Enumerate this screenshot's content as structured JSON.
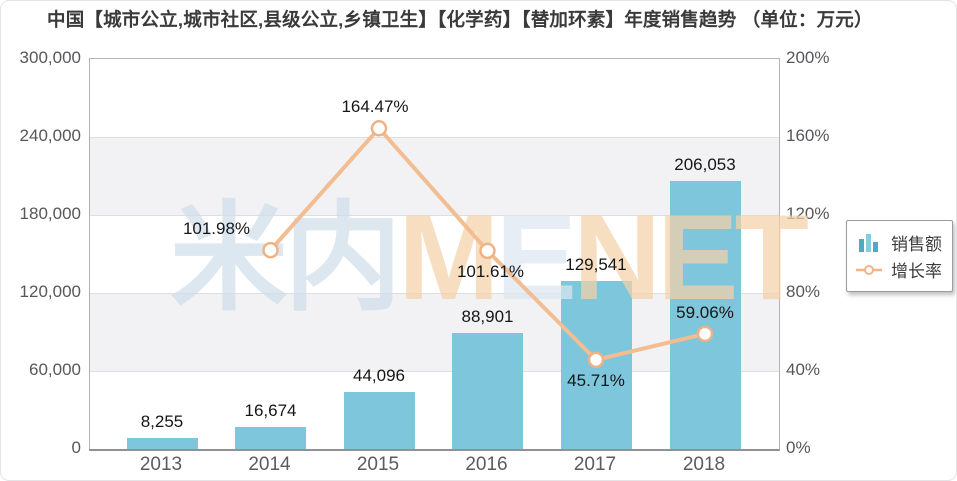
{
  "title": "中国【城市公立,城市社区,县级公立,乡镇卫生】【化学药】【替加环素】年度销售趋势 （单位：万元）",
  "legend": {
    "items": [
      {
        "label": "销售额",
        "icon": "bar-chart-icon"
      },
      {
        "label": "增长率",
        "icon": "line-chart-icon"
      }
    ]
  },
  "watermark": {
    "text": "米内MENET",
    "letters": [
      {
        "ch": "米",
        "color": "#cfdeeb",
        "cjk": true
      },
      {
        "ch": "内",
        "color": "#cfdeeb",
        "cjk": true
      },
      {
        "ch": "M",
        "color": "#f6d2a8",
        "cjk": false
      },
      {
        "ch": "E",
        "color": "#dde7f0",
        "cjk": false
      },
      {
        "ch": "N",
        "color": "#f6d2a8",
        "cjk": false
      },
      {
        "ch": "E",
        "color": "#f6d2a8",
        "cjk": false
      },
      {
        "ch": "T",
        "color": "#f6d2a8",
        "cjk": false
      }
    ]
  },
  "colors": {
    "bar": "#7ec6db",
    "line": "#f2bd91",
    "marker_stroke": "#edb286",
    "marker_fill": "#ffffff",
    "grid": "#dedee2",
    "band_gray": "#f2f2f5",
    "axis_text": "#57575b",
    "label_text": "#161616",
    "title_text": "#3a3a3a"
  },
  "chart_data": {
    "type": "bar+line combo",
    "title": "中国【城市公立,城市社区,县级公立,乡镇卫生】【化学药】【替加环素】年度销售趋势",
    "unit": "（单位：万元）",
    "categories": [
      "2013",
      "2014",
      "2015",
      "2016",
      "2017",
      "2018"
    ],
    "series": [
      {
        "name": "销售额",
        "type": "bar",
        "axis": "left",
        "values": [
          8255,
          16674,
          44096,
          88901,
          129541,
          206053
        ],
        "labels": [
          "8,255",
          "16,674",
          "44,096",
          "88,901",
          "129,541",
          "206,053"
        ]
      },
      {
        "name": "增长率",
        "type": "line",
        "axis": "right",
        "values": [
          null,
          101.98,
          164.47,
          101.61,
          45.71,
          59.06
        ],
        "labels": [
          null,
          "101.98%",
          "164.47%",
          "101.61%",
          "45.71%",
          "59.06%"
        ]
      }
    ],
    "left_axis": {
      "min": 0,
      "max": 300000,
      "ticks": [
        "300,000",
        "240,000",
        "180,000",
        "120,000",
        "60,000",
        "0"
      ]
    },
    "right_axis": {
      "min": 0,
      "max": 200,
      "ticks": [
        "200%",
        "160%",
        "120%",
        "80%",
        "40%",
        "0%"
      ]
    },
    "grid": "horizontal gridlines with alternating gray/white bands",
    "legend_position": "right, floating box"
  }
}
